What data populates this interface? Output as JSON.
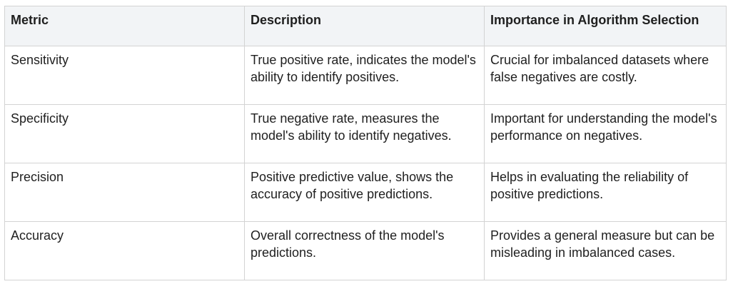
{
  "table": {
    "headers": [
      "Metric",
      "Description",
      "Importance in Algorithm Selection"
    ],
    "rows": [
      {
        "metric": "Sensitivity",
        "description": "True positive rate, indicates the model's ability to identify positives.",
        "importance": "Crucial for imbalanced datasets where false negatives are costly."
      },
      {
        "metric": "Specificity",
        "description": "True negative rate, measures the model's ability to identify negatives.",
        "importance": "Important for understanding the model's performance on negatives."
      },
      {
        "metric": "Precision",
        "description": "Positive predictive value, shows the accuracy of positive predictions.",
        "importance": "Helps in evaluating the reliability of positive predictions."
      },
      {
        "metric": "Accuracy",
        "description": "Overall correctness of the model's predictions.",
        "importance": "Provides a general measure but can be misleading in imbalanced cases."
      }
    ]
  }
}
